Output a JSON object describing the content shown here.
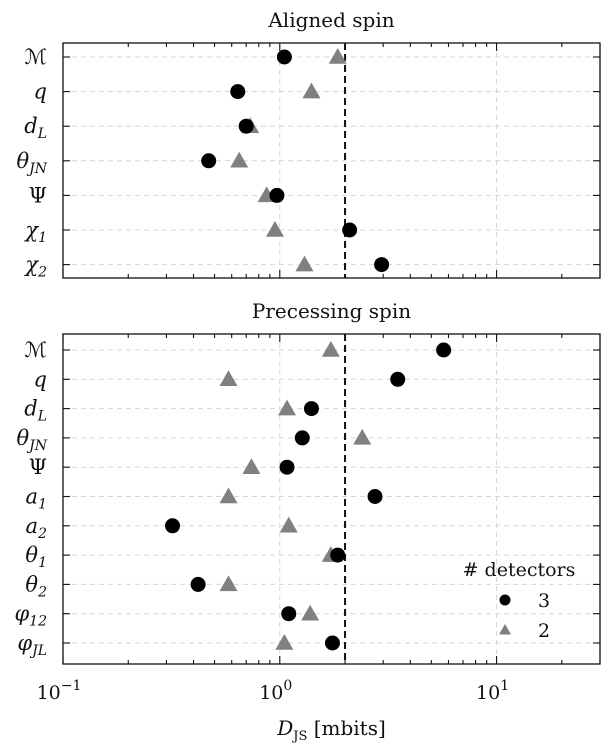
{
  "chart_data": {
    "type": "scatter",
    "xscale": "log",
    "xlim": [
      0.1,
      30
    ],
    "xlabel": "D_JS [mbits]",
    "xlabel_main": "D",
    "xlabel_sub": "JS",
    "xlabel_unit": "[mbits]",
    "xticks": [
      {
        "value": 0.1,
        "base": "10",
        "exp": "−1"
      },
      {
        "value": 1,
        "base": "10",
        "exp": "0"
      },
      {
        "value": 10,
        "base": "10",
        "exp": "1"
      }
    ],
    "threshold": 2,
    "grid": true,
    "legend": {
      "title": "# detectors",
      "placement": "lower-right",
      "entries": [
        {
          "label": "3",
          "marker": "circle",
          "color": "#000000"
        },
        {
          "label": "2",
          "marker": "triangle",
          "color": "#808080"
        }
      ]
    },
    "panels": [
      {
        "title": "Aligned spin",
        "parameters": [
          {
            "main": "ℳ",
            "sub": "",
            "upright": true
          },
          {
            "main": "q",
            "sub": ""
          },
          {
            "main": "d",
            "sub": "L"
          },
          {
            "main": "θ",
            "sub": "JN"
          },
          {
            "main": "Ψ",
            "sub": "",
            "upright": true
          },
          {
            "main": "χ",
            "sub": "1"
          },
          {
            "main": "χ",
            "sub": "2"
          }
        ],
        "series": [
          {
            "name": "3",
            "marker": "circle",
            "color": "#000000",
            "values": [
              1.05,
              0.64,
              0.7,
              0.47,
              0.97,
              2.1,
              2.95
            ]
          },
          {
            "name": "2",
            "marker": "triangle",
            "color": "#808080",
            "values": [
              1.85,
              1.4,
              0.73,
              0.65,
              0.87,
              0.95,
              1.3
            ]
          }
        ]
      },
      {
        "title": "Precessing spin",
        "parameters": [
          {
            "main": "ℳ",
            "sub": "",
            "upright": true
          },
          {
            "main": "q",
            "sub": ""
          },
          {
            "main": "d",
            "sub": "L"
          },
          {
            "main": "θ",
            "sub": "JN"
          },
          {
            "main": "Ψ",
            "sub": "",
            "upright": true
          },
          {
            "main": "a",
            "sub": "1"
          },
          {
            "main": "a",
            "sub": "2"
          },
          {
            "main": "θ",
            "sub": "1"
          },
          {
            "main": "θ",
            "sub": "2"
          },
          {
            "main": "φ",
            "sub": "12"
          },
          {
            "main": "φ",
            "sub": "JL"
          }
        ],
        "series": [
          {
            "name": "3",
            "marker": "circle",
            "color": "#000000",
            "values": [
              5.7,
              3.5,
              1.4,
              1.27,
              1.08,
              2.75,
              0.32,
              1.85,
              0.42,
              1.1,
              1.75
            ]
          },
          {
            "name": "2",
            "marker": "triangle",
            "color": "#808080",
            "values": [
              1.72,
              0.58,
              1.08,
              2.4,
              0.74,
              0.58,
              1.1,
              1.72,
              0.58,
              1.38,
              1.05
            ]
          }
        ]
      }
    ]
  }
}
